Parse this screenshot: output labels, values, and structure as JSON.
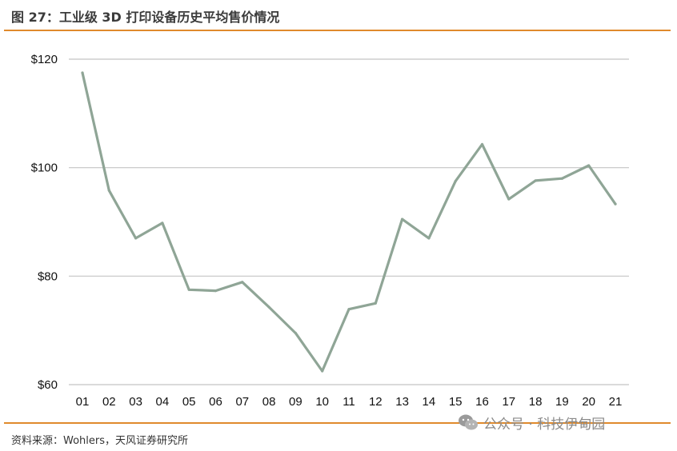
{
  "figure": {
    "title": "图 27：工业级 3D 打印设备历史平均售价情况",
    "source": "资料来源：Wohlers，天风证券研究所",
    "watermark": "公众号 · 科技伊甸园",
    "watermark_icon": "wechat-icon"
  },
  "colors": {
    "accent": "#e08a2c",
    "line": "#8fa596",
    "grid": "#c4c4c4"
  },
  "chart_data": {
    "type": "line",
    "title": "",
    "xlabel": "",
    "ylabel": "",
    "categories": [
      "01",
      "02",
      "03",
      "04",
      "05",
      "06",
      "07",
      "08",
      "09",
      "10",
      "11",
      "12",
      "13",
      "14",
      "15",
      "16",
      "17",
      "18",
      "19",
      "20",
      "21"
    ],
    "series": [
      {
        "values": [
          117.5,
          95.8,
          87.0,
          89.8,
          77.5,
          77.3,
          78.9,
          74.3,
          69.5,
          62.5,
          73.9,
          75.0,
          90.5,
          87.0,
          97.5,
          104.3,
          94.2,
          97.6,
          98.0,
          100.4,
          93.3
        ]
      }
    ],
    "ylim": [
      60,
      120
    ],
    "yticks": [
      60,
      80,
      100,
      120
    ],
    "ytick_labels": [
      "$60",
      "$80",
      "$100",
      "$120"
    ],
    "grid": "horizontal"
  }
}
